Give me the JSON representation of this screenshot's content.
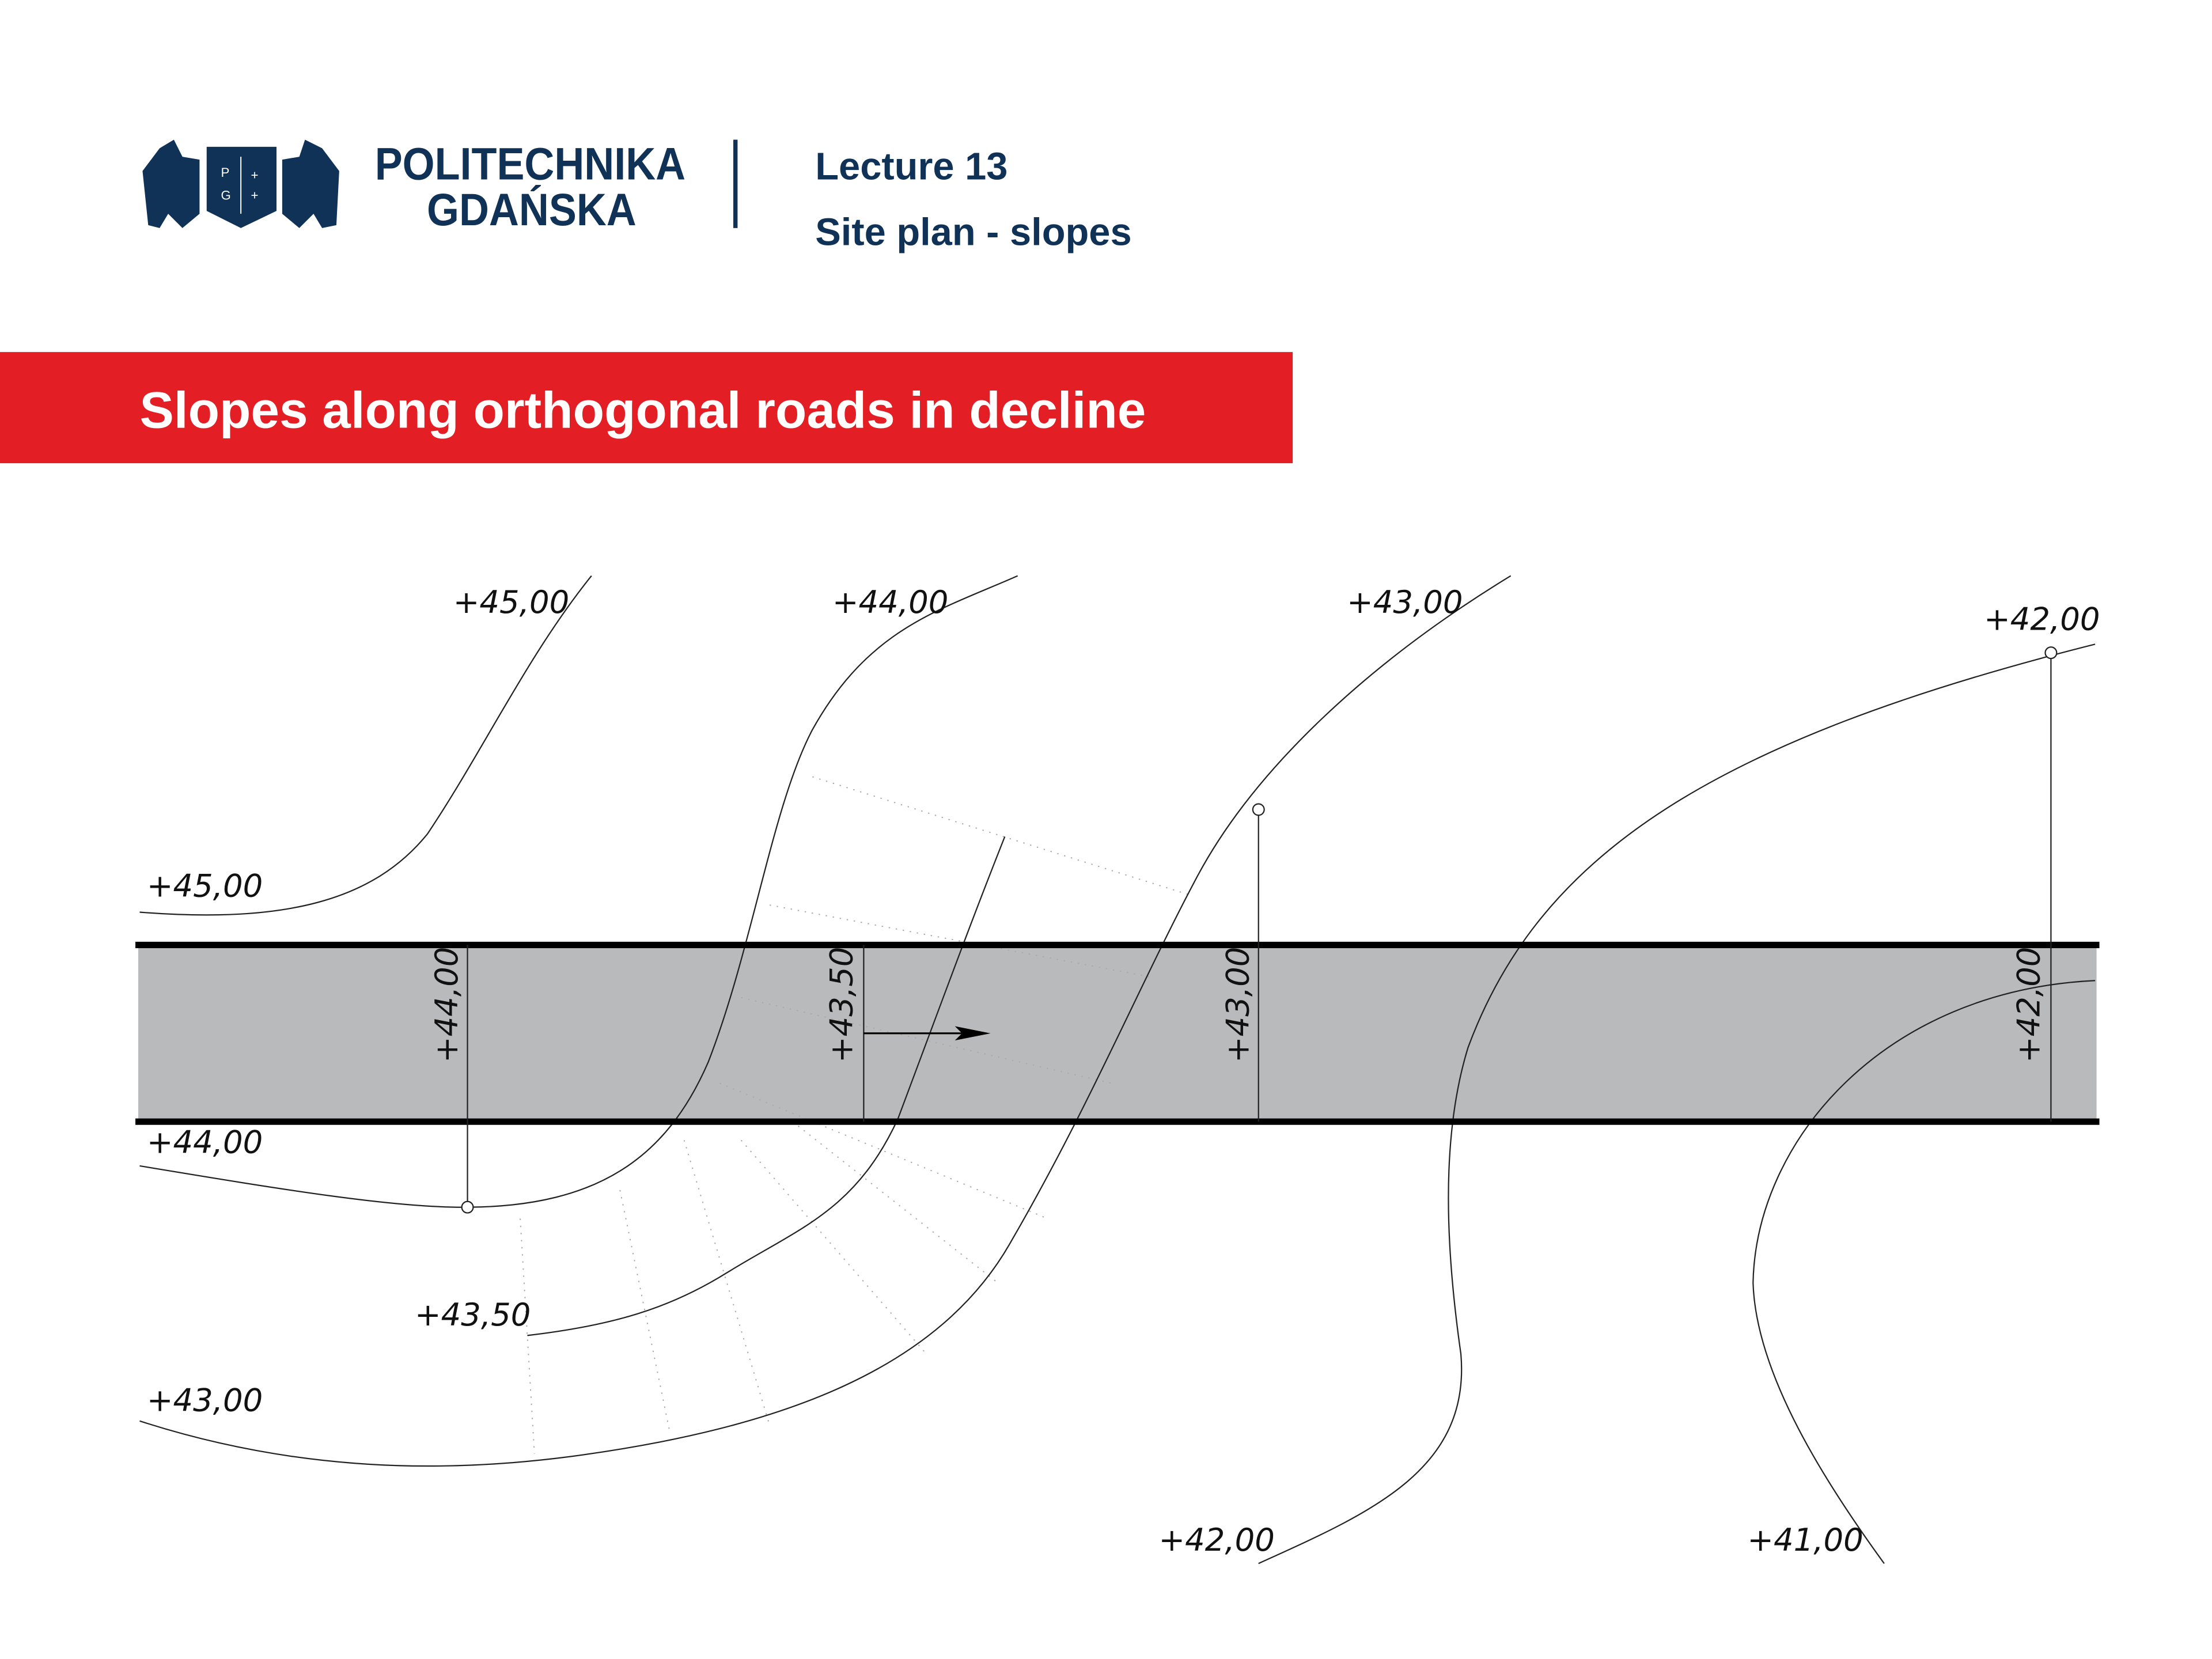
{
  "header": {
    "logo_line1": "POLITECHNIKA",
    "logo_line2": "GDAŃSKA",
    "logo_shield_letters": "PG",
    "lecture": "Lecture 13",
    "topic": "Site plan - slopes"
  },
  "banner": {
    "title": "Slopes along orthogonal roads in decline",
    "color": "#e31e24"
  },
  "colors": {
    "brand": "#0f3256",
    "road": "#b9babc"
  },
  "drawing": {
    "contour_labels": {
      "c45_top": "+45,00",
      "c45_left": "+45,00",
      "c44_top": "+44,00",
      "c44_left": "+44,00",
      "c4350": "+43,50",
      "c43_top": "+43,00",
      "c43_left": "+43,00",
      "c42_top": "+42,00",
      "c42_bottom": "+42,00",
      "c41": "+41,00"
    },
    "road_labels": {
      "r1": "+44,00",
      "r2": "+43,50",
      "r3": "+43,00",
      "r4": "+42,00"
    }
  }
}
